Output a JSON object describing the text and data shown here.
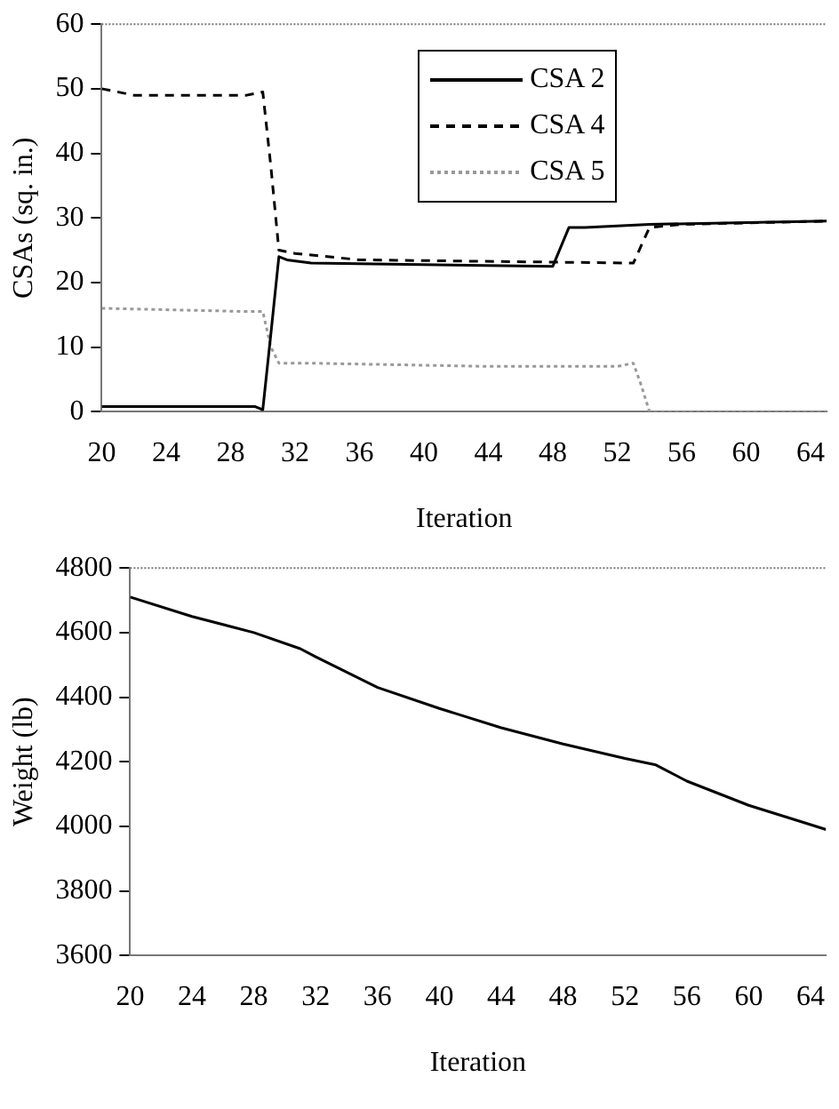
{
  "chart_data": [
    {
      "type": "line",
      "xlabel": "Iteration",
      "ylabel": "CSAs (sq. in.)",
      "xlim": [
        20,
        65
      ],
      "xticks": [
        20,
        24,
        28,
        32,
        36,
        40,
        44,
        48,
        52,
        56,
        60,
        64
      ],
      "ylim": [
        0,
        60
      ],
      "yticks": [
        0,
        10,
        20,
        30,
        40,
        50,
        60
      ],
      "marker": "none",
      "legend": "top right",
      "series": [
        {
          "name": "CSA 2",
          "color": "#000000",
          "line_style": "solid",
          "x": [
            20,
            29.5,
            30,
            30.5,
            31,
            31.5,
            33,
            48,
            49,
            50,
            54,
            65
          ],
          "values": [
            0.8,
            0.8,
            0.3,
            12,
            24,
            23.5,
            23,
            22.5,
            28.5,
            28.5,
            29,
            29.5
          ]
        },
        {
          "name": "CSA 4",
          "color": "#000000",
          "line_style": "dashed",
          "x": [
            20,
            22,
            29,
            30,
            30.5,
            31,
            32,
            36,
            53,
            54,
            56,
            65
          ],
          "values": [
            50,
            49,
            49,
            49.5,
            38,
            25,
            24.5,
            23.5,
            23,
            28.5,
            29,
            29.5
          ]
        },
        {
          "name": "CSA 5",
          "color": "#999999",
          "line_style": "dotted",
          "x": [
            20,
            29,
            30,
            30.5,
            31,
            33,
            44,
            52,
            53,
            53.5,
            54,
            65
          ],
          "values": [
            16,
            15.5,
            15.5,
            10,
            7.5,
            7.5,
            7,
            7,
            7.5,
            4,
            0,
            0
          ]
        }
      ]
    },
    {
      "type": "line",
      "xlabel": "Iteration",
      "ylabel": "Weight (lb)",
      "xlim": [
        20,
        65
      ],
      "xticks": [
        20,
        24,
        28,
        32,
        36,
        40,
        44,
        48,
        52,
        56,
        60,
        64
      ],
      "ylim": [
        3600,
        4800
      ],
      "yticks": [
        3600,
        3800,
        4000,
        4200,
        4400,
        4600,
        4800
      ],
      "marker": "none",
      "series": [
        {
          "color": "#000000",
          "x": [
            20,
            24,
            28,
            31,
            32,
            36,
            40,
            44,
            48,
            52,
            54,
            56,
            60,
            64,
            65
          ],
          "values": [
            4710,
            4650,
            4600,
            4550,
            4525,
            4430,
            4365,
            4305,
            4255,
            4210,
            4190,
            4140,
            4065,
            4005,
            3990
          ]
        }
      ]
    }
  ]
}
